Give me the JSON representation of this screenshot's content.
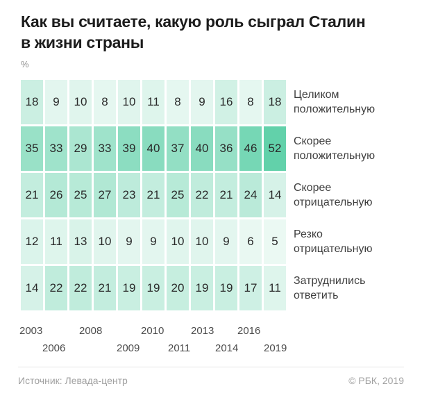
{
  "title": {
    "line1": "Как вы считаете, какую роль сыграл Сталин",
    "line2": "в жизни страны"
  },
  "unit_label": "%",
  "chart_data": {
    "type": "heatmap",
    "title": "Как вы считаете, какую роль сыграл Сталин в жизни страны",
    "unit": "%",
    "n_columns": 11,
    "x_labels_line1": [
      "2003",
      "2008",
      "2010",
      "2013",
      "2016"
    ],
    "x_labels_line2": [
      "2006",
      "2009",
      "2011",
      "2014",
      "2019"
    ],
    "series": [
      {
        "name": "Целиком положительную",
        "values": [
          18,
          9,
          10,
          8,
          10,
          11,
          8,
          9,
          16,
          8,
          18
        ]
      },
      {
        "name": "Скорее положительную",
        "values": [
          35,
          33,
          29,
          33,
          39,
          40,
          37,
          40,
          36,
          46,
          52
        ]
      },
      {
        "name": "Скорее отрицательную",
        "values": [
          21,
          26,
          25,
          27,
          23,
          21,
          25,
          22,
          21,
          24,
          14
        ]
      },
      {
        "name": "Резко отрицательную",
        "values": [
          12,
          11,
          13,
          10,
          9,
          9,
          10,
          10,
          9,
          6,
          5
        ]
      },
      {
        "name": "Затруднились ответить",
        "values": [
          14,
          22,
          22,
          21,
          19,
          19,
          20,
          19,
          19,
          17,
          11
        ]
      }
    ],
    "value_range": [
      5,
      52
    ],
    "color_scale": {
      "light": "#edf9f4",
      "dark": "#62d1aa",
      "domain_min": 4,
      "domain_max": 52
    },
    "legend_position": "right-row-labels",
    "grid": "off"
  },
  "footer": {
    "source": "Источник: Левада-центр",
    "copyright": "© РБК, 2019"
  }
}
